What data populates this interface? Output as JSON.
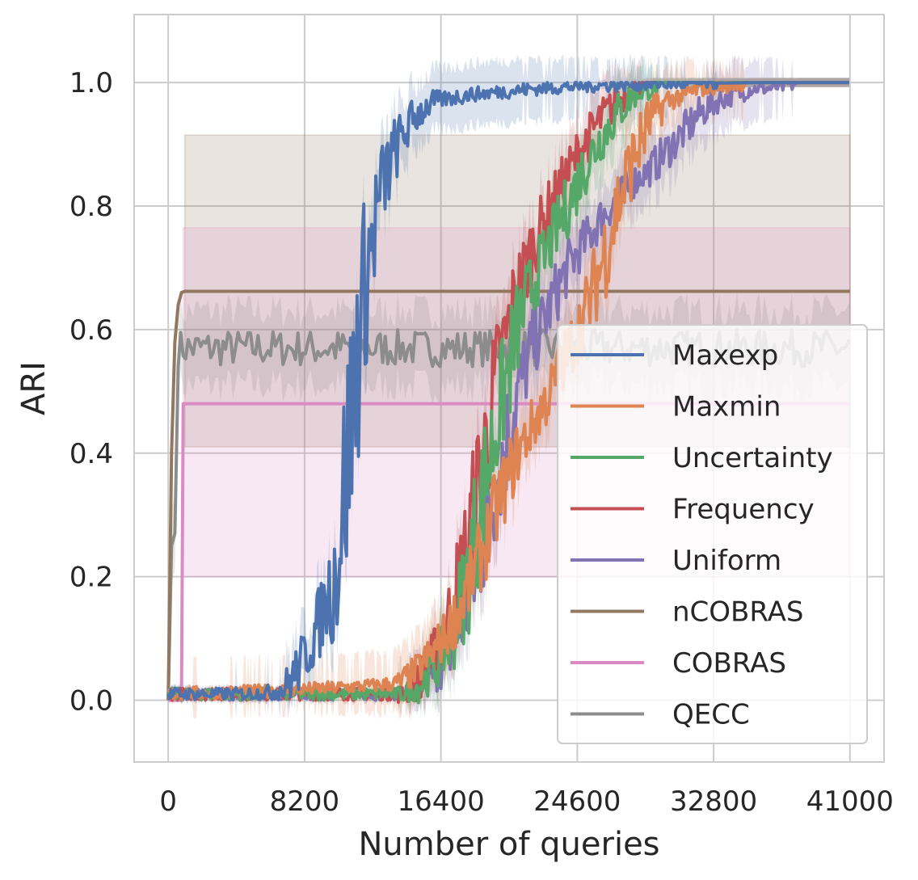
{
  "chart_data": {
    "type": "line",
    "title": "",
    "xlabel": "Number of queries",
    "ylabel": "ARI",
    "xlim": [
      -2050,
      43050
    ],
    "ylim": [
      -0.1,
      1.11
    ],
    "xticks": [
      0,
      8200,
      16400,
      24600,
      32800,
      41000
    ],
    "xtick_labels": [
      "0",
      "8200",
      "16400",
      "24600",
      "32800",
      "41000"
    ],
    "yticks": [
      0.0,
      0.2,
      0.4,
      0.6,
      0.8,
      1.0
    ],
    "ytick_labels": [
      "0.0",
      "0.2",
      "0.4",
      "0.6",
      "0.8",
      "1.0"
    ],
    "grid": true,
    "legend_position": "lower-right",
    "series": [
      {
        "name": "Maxexp",
        "color": "#4c72b0",
        "band_width": 0.05,
        "x": [
          0,
          2000,
          4000,
          6000,
          7000,
          8000,
          9000,
          10000,
          10500,
          11000,
          11500,
          12000,
          12500,
          13000,
          13500,
          14000,
          14500,
          15000,
          16000,
          17000,
          18000,
          20000,
          22000,
          24000,
          26000,
          28000,
          30000,
          33000,
          36000,
          41000
        ],
        "y": [
          0.01,
          0.01,
          0.01,
          0.012,
          0.02,
          0.06,
          0.12,
          0.2,
          0.32,
          0.45,
          0.6,
          0.7,
          0.78,
          0.84,
          0.88,
          0.91,
          0.93,
          0.95,
          0.97,
          0.975,
          0.98,
          0.985,
          0.99,
          0.993,
          0.995,
          0.997,
          0.998,
          0.999,
          1.0,
          1.0
        ]
      },
      {
        "name": "Maxmin",
        "color": "#dd8452",
        "band_width": 0.05,
        "x": [
          0,
          2000,
          6000,
          10000,
          13000,
          14000,
          15000,
          16000,
          17000,
          18000,
          19000,
          20000,
          21000,
          22000,
          23000,
          24000,
          25000,
          26000,
          27000,
          28000,
          29000,
          30000,
          32000,
          35000,
          41000
        ],
        "y": [
          0.01,
          0.012,
          0.015,
          0.02,
          0.025,
          0.03,
          0.05,
          0.08,
          0.12,
          0.18,
          0.25,
          0.33,
          0.4,
          0.45,
          0.5,
          0.56,
          0.62,
          0.7,
          0.8,
          0.88,
          0.94,
          0.97,
          0.99,
          1.0,
          1.0
        ]
      },
      {
        "name": "Uncertainty",
        "color": "#55a868",
        "band_width": 0.05,
        "x": [
          0,
          14000,
          15000,
          16000,
          17000,
          18000,
          19000,
          20000,
          21000,
          22000,
          23000,
          24000,
          25000,
          26000,
          27000,
          28000,
          29000,
          30000,
          32000,
          35000,
          41000
        ],
        "y": [
          0.01,
          0.01,
          0.02,
          0.05,
          0.1,
          0.2,
          0.35,
          0.48,
          0.6,
          0.68,
          0.74,
          0.8,
          0.86,
          0.91,
          0.95,
          0.98,
          0.99,
          1.0,
          1.0,
          1.0,
          1.0
        ]
      },
      {
        "name": "Frequency",
        "color": "#c44e52",
        "band_width": 0.05,
        "x": [
          0,
          14000,
          15000,
          16000,
          17000,
          18000,
          19000,
          20000,
          21000,
          22000,
          23000,
          24000,
          25000,
          26000,
          27000,
          28000,
          29000,
          30000,
          32000,
          35000,
          41000
        ],
        "y": [
          0.01,
          0.01,
          0.03,
          0.07,
          0.14,
          0.25,
          0.4,
          0.55,
          0.66,
          0.74,
          0.8,
          0.85,
          0.9,
          0.94,
          0.97,
          0.99,
          1.0,
          1.0,
          1.0,
          1.0,
          1.0
        ]
      },
      {
        "name": "Uniform",
        "color": "#8172b3",
        "band_width": 0.05,
        "x": [
          0,
          14000,
          15000,
          16000,
          17000,
          18000,
          19000,
          20000,
          21000,
          22000,
          23000,
          24000,
          25000,
          26000,
          27000,
          28000,
          29000,
          30000,
          31000,
          32000,
          33000,
          34000,
          35000,
          36000,
          38000,
          41000
        ],
        "y": [
          0.01,
          0.01,
          0.02,
          0.04,
          0.08,
          0.15,
          0.26,
          0.38,
          0.5,
          0.58,
          0.64,
          0.7,
          0.74,
          0.78,
          0.81,
          0.84,
          0.86,
          0.89,
          0.92,
          0.95,
          0.97,
          0.98,
          0.99,
          0.99,
          1.0,
          1.0
        ]
      },
      {
        "name": "nCOBRAS",
        "color": "#937860",
        "band_lower": 0.41,
        "band_upper": 0.915,
        "x": [
          0,
          200,
          400,
          600,
          800,
          1000,
          41000
        ],
        "y": [
          0.0,
          0.4,
          0.58,
          0.64,
          0.66,
          0.662,
          0.662
        ]
      },
      {
        "name": "COBRAS",
        "color": "#da8bc3",
        "band_lower": 0.2,
        "band_upper": 0.765,
        "x": [
          0,
          800,
          900,
          41000
        ],
        "y": [
          0.0,
          0.0,
          0.48,
          0.48
        ]
      },
      {
        "name": "QECC",
        "color": "#8c8c8c",
        "mean": 0.57,
        "noise": 0.03,
        "band_width": 0.06,
        "x_start": 300,
        "x_end": 41000
      }
    ]
  }
}
